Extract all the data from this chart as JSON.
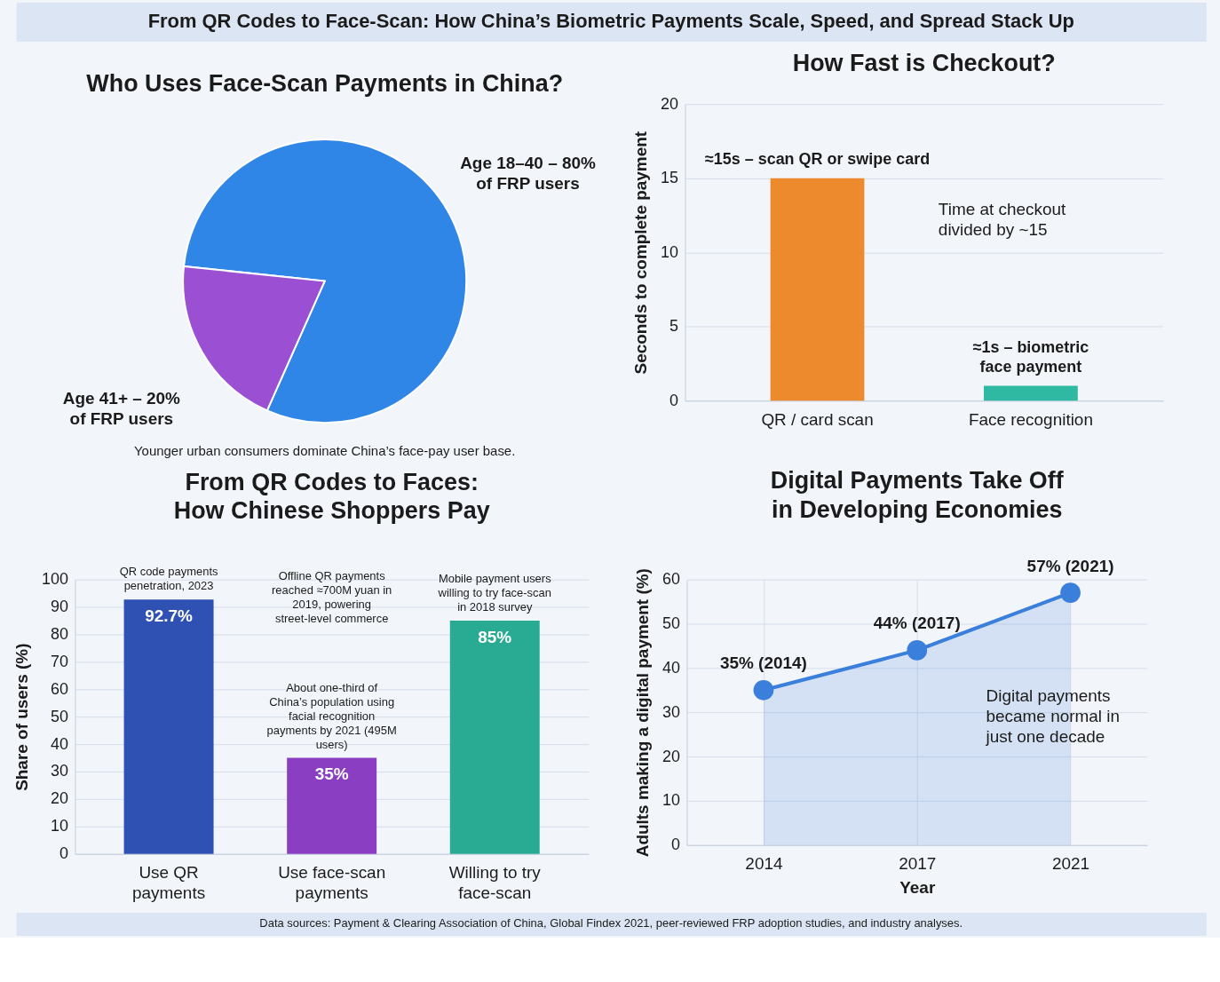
{
  "chart_data": [
    {
      "type": "other",
      "title": "From QR Codes to Face-Scan: How China’s Biometric Payments Scale, Speed, and Spread Stack Up"
    },
    {
      "type": "pie",
      "title": "Who Uses Face-Scan Payments in China?",
      "categories": [
        "Age 18–40 – 80% of FRP users",
        "Age 41+ – 20% of FRP users"
      ],
      "values": [
        80,
        20
      ],
      "colors": [
        "#2f86e6",
        "#9b4fd2"
      ],
      "annotations": [
        "Younger urban consumers dominate China’s face-pay user base."
      ]
    },
    {
      "type": "bar",
      "title": "How Fast is Checkout?",
      "categories": [
        "QR / card scan",
        "Face recognition"
      ],
      "values": [
        15,
        1
      ],
      "colors": [
        "#ee8a2e",
        "#2fb9a2"
      ],
      "value_labels": [
        "≈15s – scan QR or swipe card",
        "≈1s – biometric face payment"
      ],
      "ylabel": "Seconds to complete payment",
      "ylim": [
        0,
        20
      ],
      "yticks": [
        0,
        5,
        10,
        15,
        20
      ],
      "grid": "y",
      "annotations": [
        "Time at checkout divided by ~15"
      ]
    },
    {
      "type": "bar",
      "title": "From QR Codes to Faces: How Chinese Shoppers Pay",
      "categories": [
        "Use QR payments",
        "Use face-scan payments",
        "Willing to try face-scan"
      ],
      "values": [
        92.7,
        35,
        85
      ],
      "colors": [
        "#2f51b3",
        "#8a3fc2",
        "#28ab92"
      ],
      "value_labels": [
        "92.7%",
        "35%",
        "85%"
      ],
      "ylabel": "Share of users (%)",
      "ylim": [
        0,
        100
      ],
      "yticks": [
        0,
        10,
        20,
        30,
        40,
        50,
        60,
        70,
        80,
        90,
        100
      ],
      "grid": "y",
      "annotations": [
        {
          "text": "QR code payments penetration, 2023",
          "x": "Use QR payments",
          "y": 92.7
        },
        "Offline QR payments reached ≈700M yuan in 2019, powering street-level commerce",
        {
          "text": "About one-third of China’s population using facial recognition payments by 2021 (495M users)",
          "x": "Use face-scan payments",
          "y": 35
        },
        {
          "text": "Mobile payment users willing to try face-scan in 2018 survey",
          "x": "Willing to try face-scan",
          "y": 85
        }
      ]
    },
    {
      "type": "area",
      "title": "Digital Payments Take Off in Developing Economies",
      "categories": [
        "2014",
        "2017",
        "2021"
      ],
      "values": [
        35,
        44,
        57
      ],
      "color": "#3b7fdc",
      "value_labels": [
        "35% (2014)",
        "44% (2017)",
        "57% (2021)"
      ],
      "xlabel": "Year",
      "ylabel": "Adults making a digital payment (%)",
      "ylim": [
        0,
        60
      ],
      "yticks": [
        0,
        10,
        20,
        30,
        40,
        50,
        60
      ],
      "grid": true,
      "marker": "circle",
      "annotations": [
        "Digital payments became normal in just one decade"
      ]
    },
    {
      "type": "other",
      "annotations": [
        "Data sources: Payment & Clearing Association of China, Global Findex 2021, peer-reviewed FRP adoption studies, and industry analyses."
      ]
    }
  ]
}
